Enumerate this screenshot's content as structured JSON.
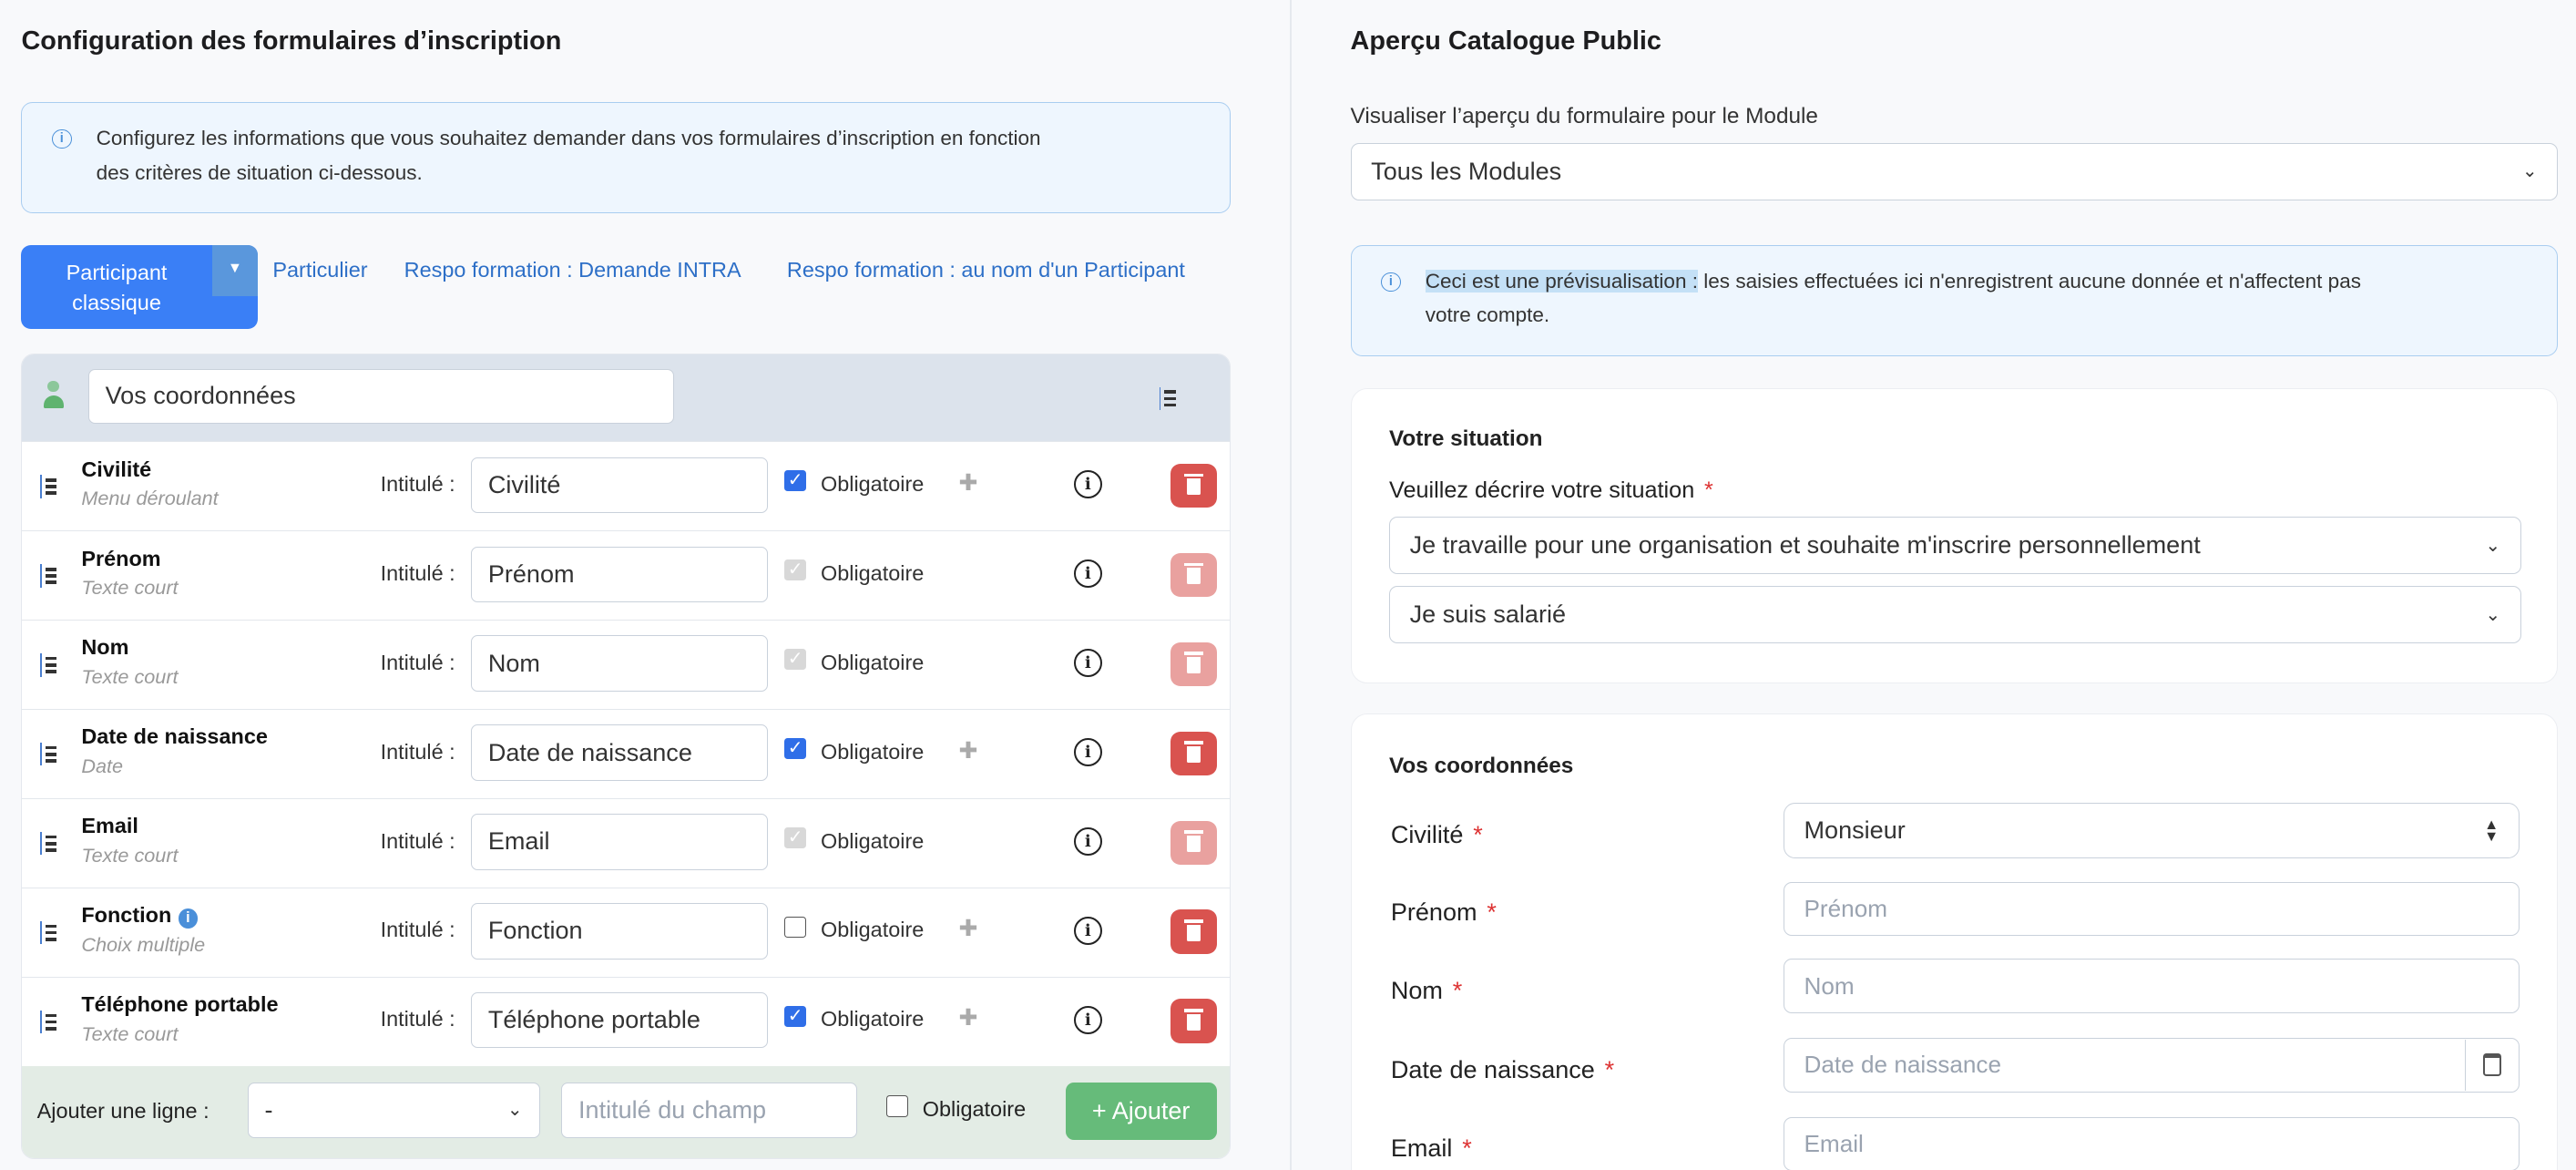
{
  "left": {
    "title": "Configuration des formulaires d’inscription",
    "info_line1": "Configurez les informations que vous souhaitez demander dans vos formulaires d’inscription en fonction",
    "info_line2": "des critères de situation ci-dessous.",
    "tabs": {
      "active_line1": "Participant",
      "active_line2": "classique",
      "links": [
        "Particulier",
        "Respo formation : Demande INTRA",
        "Respo formation : au nom d'un Participant"
      ]
    },
    "section_title_value": "Vos coordonnées",
    "intitule_label": "Intitulé :",
    "obligatoire_label": "Obligatoire",
    "rows": [
      {
        "name": "Civilité",
        "type": "Menu déroulant",
        "value": "Civilité",
        "checkbox": "checked",
        "puzzle": true,
        "deletable": true
      },
      {
        "name": "Prénom",
        "type": "Texte court",
        "value": "Prénom",
        "checkbox": "disabled",
        "puzzle": false,
        "deletable": false
      },
      {
        "name": "Nom",
        "type": "Texte court",
        "value": "Nom",
        "checkbox": "disabled",
        "puzzle": false,
        "deletable": false
      },
      {
        "name": "Date de naissance",
        "type": "Date",
        "value": "Date de naissance",
        "checkbox": "checked",
        "puzzle": true,
        "deletable": true
      },
      {
        "name": "Email",
        "type": "Texte court",
        "value": "Email",
        "checkbox": "disabled",
        "puzzle": false,
        "deletable": false
      },
      {
        "name": "Fonction",
        "type": "Choix multiple",
        "value": "Fonction",
        "checkbox": "unchecked",
        "puzzle": true,
        "deletable": true,
        "has_info_badge": true
      },
      {
        "name": "Téléphone portable",
        "type": "Texte court",
        "value": "Téléphone portable",
        "checkbox": "checked",
        "puzzle": true,
        "deletable": true
      }
    ],
    "footer": {
      "label": "Ajouter une ligne :",
      "select_value": "-",
      "field_placeholder": "Intitulé du champ",
      "obligatoire": "Obligatoire",
      "add_button": "+ Ajouter"
    }
  },
  "right": {
    "title": "Aperçu Catalogue Public",
    "module_label": "Visualiser l’aperçu du formulaire pour le Module",
    "module_value": "Tous les Modules",
    "preview_bold": "Ceci est une prévisualisation :",
    "preview_rest": " les saisies effectuées ici n'enregistrent aucune donnée et n'affectent pas",
    "preview_line2": "votre compte.",
    "situation": {
      "title": "Votre situation",
      "label": "Veuillez décrire votre situation",
      "select1": "Je travaille pour une organisation et souhaite m'inscrire personnellement",
      "select2": "Je suis salarié"
    },
    "coords": {
      "title": "Vos coordonnées",
      "civilite_label": "Civilité",
      "civilite_value": "Monsieur",
      "prenom_label": "Prénom",
      "prenom_placeholder": "Prénom",
      "nom_label": "Nom",
      "nom_placeholder": "Nom",
      "date_label": "Date de naissance",
      "date_placeholder": "Date de naissance",
      "email_label": "Email",
      "email_placeholder": "Email"
    }
  },
  "colors": {
    "primary": "#3a7ff6",
    "link": "#2d6fc7",
    "danger": "#d9534f",
    "success": "#66bb7a",
    "info_bg": "#eef6fe"
  }
}
